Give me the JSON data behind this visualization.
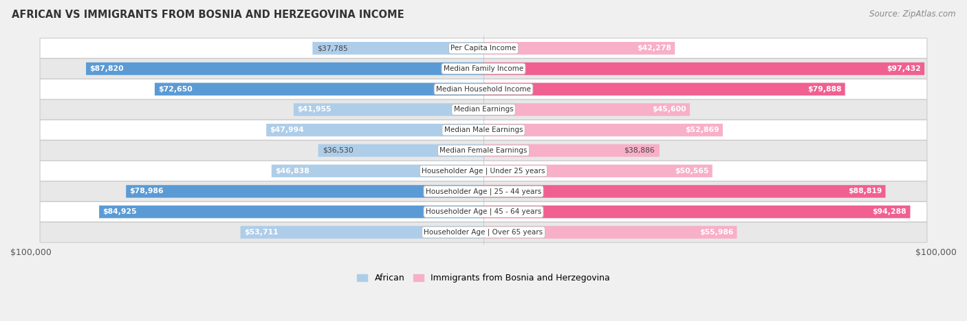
{
  "title": "AFRICAN VS IMMIGRANTS FROM BOSNIA AND HERZEGOVINA INCOME",
  "source": "Source: ZipAtlas.com",
  "categories": [
    "Per Capita Income",
    "Median Family Income",
    "Median Household Income",
    "Median Earnings",
    "Median Male Earnings",
    "Median Female Earnings",
    "Householder Age | Under 25 years",
    "Householder Age | 25 - 44 years",
    "Householder Age | 45 - 64 years",
    "Householder Age | Over 65 years"
  ],
  "african_values": [
    37785,
    87820,
    72650,
    41955,
    47994,
    36530,
    46838,
    78986,
    84925,
    53711
  ],
  "bosnia_values": [
    42278,
    97432,
    79888,
    45600,
    52869,
    38886,
    50565,
    88819,
    94288,
    55986
  ],
  "african_labels": [
    "$37,785",
    "$87,820",
    "$72,650",
    "$41,955",
    "$47,994",
    "$36,530",
    "$46,838",
    "$78,986",
    "$84,925",
    "$53,711"
  ],
  "bosnia_labels": [
    "$42,278",
    "$97,432",
    "$79,888",
    "$45,600",
    "$52,869",
    "$38,886",
    "$50,565",
    "$88,819",
    "$94,288",
    "$55,986"
  ],
  "african_color_light": "#aecde8",
  "african_color_dark": "#5b9bd5",
  "bosnia_color_light": "#f8afc8",
  "bosnia_color_dark": "#f06090",
  "african_threshold": 55000,
  "bosnia_threshold": 60000,
  "max_value": 100000,
  "x_label_left": "$100,000",
  "x_label_right": "$100,000",
  "legend_african": "African",
  "legend_bosnia": "Immigrants from Bosnia and Herzegovina",
  "bg_color": "#f0f0f0",
  "row_bg": "#ffffff",
  "row_bg_alt": "#e8e8e8",
  "row_border": "#cccccc"
}
